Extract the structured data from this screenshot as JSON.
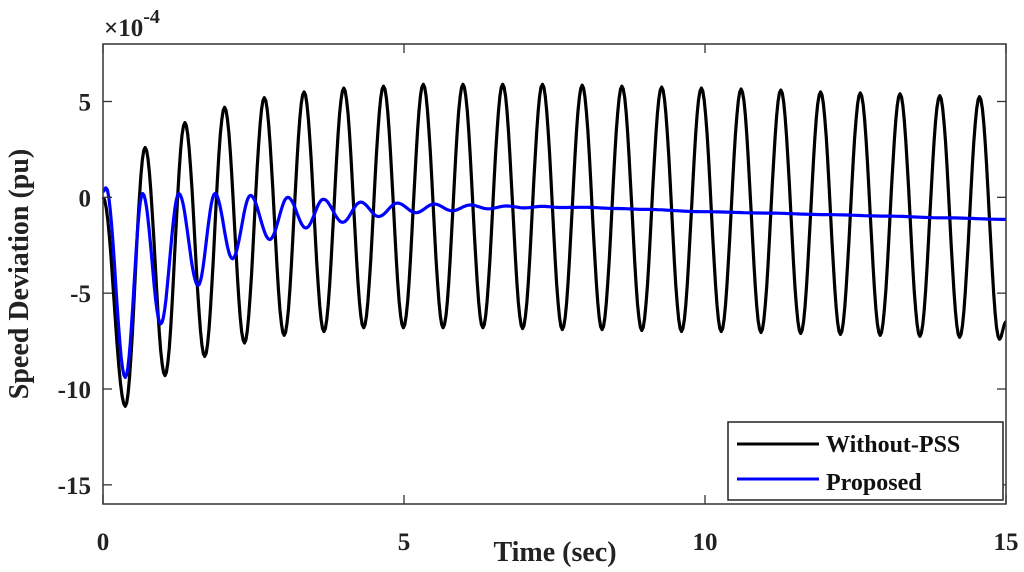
{
  "chart_data": {
    "type": "line",
    "title": "",
    "xlabel": "Time (sec)",
    "ylabel": "Speed Deviation (pu)",
    "y_multiplier_label": "×10",
    "y_multiplier_exponent": "-4",
    "xlim": [
      0,
      15
    ],
    "ylim": [
      -16,
      8
    ],
    "xticks": [
      0,
      5,
      10,
      15
    ],
    "xtick_labels": [
      "0",
      "5",
      "10",
      "15"
    ],
    "yticks": [
      -15,
      -10,
      -5,
      0,
      5
    ],
    "ytick_labels": [
      "-15",
      "-10",
      "-5",
      "0",
      "5"
    ],
    "grid": false,
    "legend_position": "bottom-right",
    "series": [
      {
        "name": "Without-PSS",
        "color": "#000000",
        "points": [
          [
            0,
            0
          ],
          [
            0.37,
            -10.9
          ],
          [
            0.7,
            2.6
          ],
          [
            1.03,
            -9.3
          ],
          [
            1.36,
            3.9
          ],
          [
            1.69,
            -8.3
          ],
          [
            2.02,
            4.7
          ],
          [
            2.35,
            -7.6
          ],
          [
            2.68,
            5.2
          ],
          [
            3.01,
            -7.2
          ],
          [
            3.34,
            5.5
          ],
          [
            3.67,
            -7.0
          ],
          [
            4.0,
            5.7
          ],
          [
            4.33,
            -6.8
          ],
          [
            4.66,
            5.8
          ],
          [
            4.99,
            -6.8
          ],
          [
            5.32,
            5.9
          ],
          [
            5.65,
            -6.8
          ],
          [
            5.98,
            5.9
          ],
          [
            6.31,
            -6.8
          ],
          [
            6.64,
            5.9
          ],
          [
            6.97,
            -6.85
          ],
          [
            7.3,
            5.9
          ],
          [
            7.63,
            -6.9
          ],
          [
            7.96,
            5.85
          ],
          [
            8.29,
            -6.9
          ],
          [
            8.62,
            5.8
          ],
          [
            8.95,
            -6.95
          ],
          [
            9.28,
            5.75
          ],
          [
            9.61,
            -7.0
          ],
          [
            9.94,
            5.7
          ],
          [
            10.27,
            -7.0
          ],
          [
            10.6,
            5.65
          ],
          [
            10.93,
            -7.05
          ],
          [
            11.26,
            5.6
          ],
          [
            11.59,
            -7.1
          ],
          [
            11.92,
            5.5
          ],
          [
            12.25,
            -7.15
          ],
          [
            12.58,
            5.45
          ],
          [
            12.91,
            -7.2
          ],
          [
            13.24,
            5.4
          ],
          [
            13.57,
            -7.25
          ],
          [
            13.9,
            5.3
          ],
          [
            14.23,
            -7.3
          ],
          [
            14.56,
            5.25
          ],
          [
            14.89,
            -7.4
          ],
          [
            15.0,
            -6.5
          ]
        ]
      },
      {
        "name": "Proposed",
        "color": "#0000ff",
        "points": [
          [
            0,
            0.3
          ],
          [
            0.05,
            0.5
          ],
          [
            0.37,
            -9.4
          ],
          [
            0.66,
            0.2
          ],
          [
            0.96,
            -6.6
          ],
          [
            1.26,
            0.2
          ],
          [
            1.58,
            -4.6
          ],
          [
            1.86,
            0.2
          ],
          [
            2.15,
            -3.2
          ],
          [
            2.45,
            0.1
          ],
          [
            2.77,
            -2.2
          ],
          [
            3.07,
            0.0
          ],
          [
            3.37,
            -1.6
          ],
          [
            3.66,
            -0.1
          ],
          [
            3.98,
            -1.3
          ],
          [
            4.28,
            -0.25
          ],
          [
            4.58,
            -1.0
          ],
          [
            4.89,
            -0.3
          ],
          [
            5.2,
            -0.8
          ],
          [
            5.5,
            -0.35
          ],
          [
            5.8,
            -0.7
          ],
          [
            6.1,
            -0.4
          ],
          [
            6.4,
            -0.6
          ],
          [
            6.7,
            -0.45
          ],
          [
            7.0,
            -0.55
          ],
          [
            7.3,
            -0.47
          ],
          [
            7.6,
            -0.53
          ],
          [
            8.0,
            -0.52
          ],
          [
            8.5,
            -0.58
          ],
          [
            9.0,
            -0.63
          ],
          [
            10.0,
            -0.75
          ],
          [
            11.0,
            -0.82
          ],
          [
            12.0,
            -0.9
          ],
          [
            13.0,
            -0.98
          ],
          [
            14.0,
            -1.07
          ],
          [
            15.0,
            -1.15
          ]
        ]
      }
    ]
  }
}
